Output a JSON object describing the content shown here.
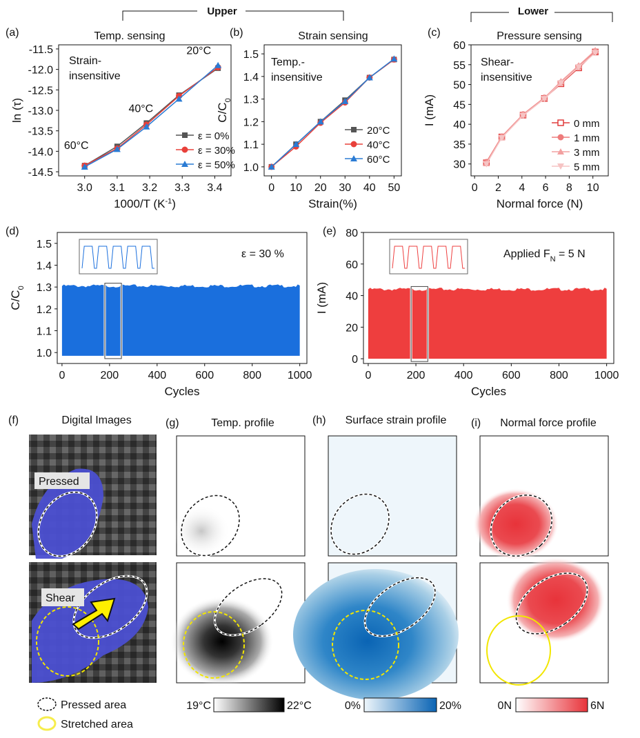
{
  "headers": {
    "upper": "Upper",
    "lower": "Lower"
  },
  "chart_data": [
    {
      "id": "a",
      "type": "line",
      "panel": "(a)",
      "title": "Temp. sensing",
      "xlabel": "1000/T (K",
      "xlabel_sup": "-1",
      "xlabel_end": ")",
      "ylabel": "ln (τ)",
      "xlim": [
        2.92,
        3.45
      ],
      "ylim": [
        -14.6,
        -11.4
      ],
      "xticks": [
        "3.0",
        "3.1",
        "3.2",
        "3.3",
        "3.4"
      ],
      "yticks": [
        "-11.5",
        "-12.0",
        "-12.5",
        "-13.0",
        "-13.5",
        "-14.0",
        "-14.5"
      ],
      "annotation": [
        "Strain-",
        "insensitive"
      ],
      "point_labels": [
        "20°C",
        "40°C",
        "60°C"
      ],
      "legend": "bottom-right",
      "x": [
        3.0,
        3.1,
        3.19,
        3.29,
        3.41
      ],
      "series": [
        {
          "name": "ε = 0%",
          "color": "#555555",
          "marker": "square",
          "values": [
            -14.35,
            -13.88,
            -13.31,
            -12.63,
            -11.97
          ]
        },
        {
          "name": "ε = 30%",
          "color": "#e8403a",
          "marker": "circle",
          "values": [
            -14.35,
            -13.93,
            -13.35,
            -12.65,
            -11.95
          ]
        },
        {
          "name": "ε = 50%",
          "color": "#2a7bd4",
          "marker": "triangle",
          "values": [
            -14.38,
            -13.95,
            -13.4,
            -12.72,
            -11.9
          ]
        }
      ]
    },
    {
      "id": "b",
      "type": "line",
      "panel": "(b)",
      "title": "Strain sensing",
      "xlabel": "Strain(%)",
      "ylabel": "C/C",
      "ylabel_sub": "0",
      "xlim": [
        -3,
        53
      ],
      "ylim": [
        0.96,
        1.54
      ],
      "xticks": [
        "0",
        "10",
        "20",
        "30",
        "40",
        "50"
      ],
      "yticks": [
        "1.0",
        "1.1",
        "1.2",
        "1.3",
        "1.4",
        "1.5"
      ],
      "annotation": [
        "Temp.-",
        "insensitive"
      ],
      "legend": "bottom-right",
      "x": [
        0,
        10,
        20,
        30,
        40,
        50
      ],
      "series": [
        {
          "name": "20°C",
          "color": "#555555",
          "marker": "square",
          "values": [
            1.0,
            1.1,
            1.2,
            1.295,
            1.395,
            1.475
          ]
        },
        {
          "name": "40°C",
          "color": "#e8403a",
          "marker": "circle",
          "values": [
            1.0,
            1.09,
            1.195,
            1.285,
            1.395,
            1.475
          ]
        },
        {
          "name": "60°C",
          "color": "#2a7bd4",
          "marker": "triangle",
          "values": [
            1.0,
            1.1,
            1.2,
            1.29,
            1.395,
            1.478
          ]
        }
      ]
    },
    {
      "id": "c",
      "type": "line",
      "panel": "(c)",
      "title": "Pressure sensing",
      "xlabel": "Normal force (N)",
      "ylabel": "I (mA)",
      "xlim": [
        -0.3,
        11.3
      ],
      "ylim": [
        27,
        60
      ],
      "xticks": [
        "0",
        "2",
        "4",
        "6",
        "8",
        "10"
      ],
      "yticks": [
        "30",
        "35",
        "40",
        "45",
        "50",
        "55",
        "60"
      ],
      "annotation": [
        "Shear-",
        "insensitive"
      ],
      "legend": "bottom-right",
      "x": [
        1,
        2.3,
        4.1,
        5.9,
        7.3,
        8.8,
        10.2
      ],
      "series": [
        {
          "name": "0 mm",
          "color": "#e03b3b",
          "marker": "open-square",
          "values": [
            30.3,
            36.8,
            42.3,
            46.5,
            50.2,
            54.2,
            58.2
          ]
        },
        {
          "name": "1 mm",
          "color": "#ee7b7b",
          "marker": "circle",
          "values": [
            30.5,
            36.9,
            42.5,
            46.7,
            50.5,
            54.5,
            58.4
          ]
        },
        {
          "name": "3 mm",
          "color": "#f2a0a0",
          "marker": "triangle",
          "values": [
            30.2,
            36.7,
            42.4,
            46.6,
            50.8,
            54.8,
            58.6
          ]
        },
        {
          "name": "5 mm",
          "color": "#f6c4c4",
          "marker": "triangle-down",
          "values": [
            30.0,
            36.6,
            42.2,
            46.4,
            50.4,
            54.4,
            58.0
          ]
        }
      ]
    },
    {
      "id": "d",
      "type": "area",
      "panel": "(d)",
      "xlabel": "Cycles",
      "ylabel": "C/C",
      "ylabel_sub": "0",
      "xlim": [
        -20,
        1030
      ],
      "ylim": [
        0.95,
        1.55
      ],
      "xticks": [
        "0",
        "200",
        "400",
        "600",
        "800",
        "1000"
      ],
      "yticks": [
        "1.0",
        "1.1",
        "1.2",
        "1.3",
        "1.4",
        "1.5"
      ],
      "annotation": "ε = 30 %",
      "color": "#1a6fdd",
      "band": {
        "x_start": 0,
        "x_end": 1000,
        "low": 0.985,
        "high": 1.305
      },
      "inset_cycles": 5
    },
    {
      "id": "e",
      "type": "area",
      "panel": "(e)",
      "xlabel": "Cycles",
      "ylabel": "I (mA)",
      "xlim": [
        -20,
        1030
      ],
      "ylim": [
        -3,
        80
      ],
      "xticks": [
        "0",
        "200",
        "400",
        "600",
        "800",
        "1000"
      ],
      "yticks": [
        "0",
        "20",
        "40",
        "60",
        "80"
      ],
      "annotation": "Applied F",
      "annotation_sub": "N",
      "annotation_end": " = 5 N",
      "color": "#ee3e3e",
      "band": {
        "x_start": 0,
        "x_end": 1000,
        "low": 0,
        "high": 44
      },
      "inset_cycles": 5
    }
  ],
  "bottom": {
    "panels": {
      "f": {
        "label": "(f)",
        "title": "Digital Images"
      },
      "g": {
        "label": "(g)",
        "title": "Temp. profile"
      },
      "h": {
        "label": "(h)",
        "title": "Surface strain profile"
      },
      "i": {
        "label": "(i)",
        "title": "Normal force profile"
      }
    },
    "photo_tags": {
      "pressed": "Pressed",
      "shear": "Shear"
    },
    "colorbars": {
      "temp": {
        "min": "19°C",
        "max": "22°C",
        "from": "#ffffff",
        "to": "#000000"
      },
      "strain": {
        "min": "0%",
        "max": "20%",
        "from": "#eef6fb",
        "to": "#0a64b4"
      },
      "force": {
        "min": "0N",
        "max": "6N",
        "from": "#ffffff",
        "to": "#e8333a"
      }
    },
    "legend": {
      "pressed": "Pressed area",
      "stretched": "Stretched area"
    }
  }
}
